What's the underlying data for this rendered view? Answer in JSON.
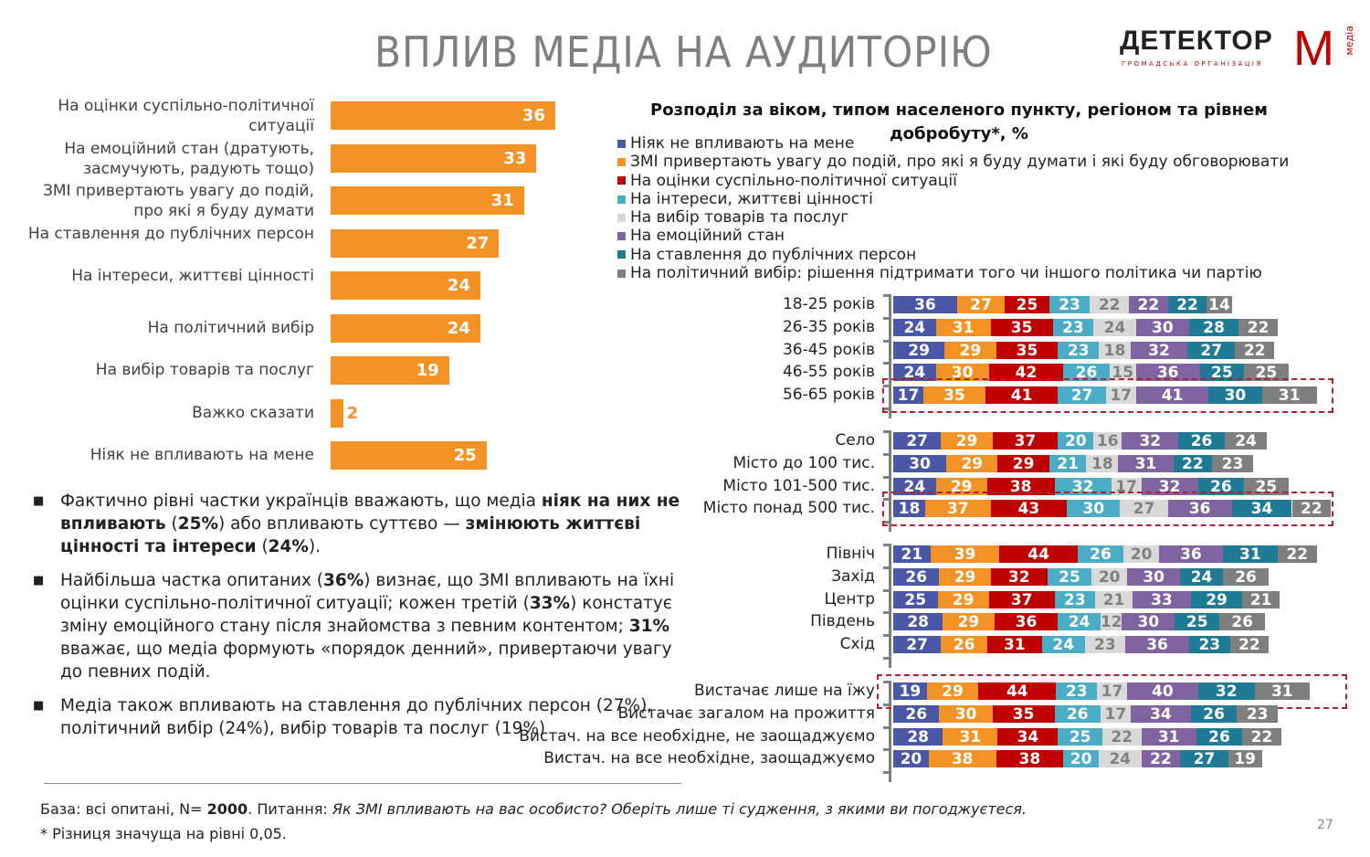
{
  "title": "ВПЛИВ МЕДІА НА АУДИТОРІЮ",
  "logo": {
    "word": "ДЕТЕКТОР",
    "m": "М",
    "sub": "ГРОМАДСЬКА ОРГАНІЗАЦІЯ",
    "media": "медіа"
  },
  "bullets": [
    [
      "Фактично рівні частки українців вважають, що медіа ",
      {
        "b": "ніяк на них не впливають"
      },
      " (",
      {
        "b": "25%"
      },
      ") або впливають суттєво — ",
      {
        "b": "змінюють життєві цінності та інтереси"
      },
      " (",
      {
        "b": "24%"
      },
      ")."
    ],
    [
      "Найбільша частка опитаних (",
      {
        "b": "36%"
      },
      ") визнає, що ЗМІ впливають на їхні оцінки суспільно-політичної ситуації; кожен третій (",
      {
        "b": "33%"
      },
      ") констатує зміну емоційного стану після знайомства з певним контентом; ",
      {
        "b": "31%"
      },
      " вважає, що медіа формують «порядок денний», привертаючи увагу до певних подій."
    ],
    [
      "Медіа також впливають на ставлення до публічних персон (27%), політичний вибір (24%), вибір товарів та послуг (19%)"
    ]
  ],
  "footnote": {
    "base_prefix": "База: всі опитані, N= ",
    "n": "2000",
    "q_prefix": ". Питання: ",
    "question": "Як ЗМІ впливають на вас особисто? Оберіть лише ті судження, з якими ви погоджуєтеся.",
    "note": "* Різниця значуща на рівні 0,05."
  },
  "page_number": "27",
  "chart_data": [
    {
      "type": "bar",
      "orientation": "horizontal",
      "categories": [
        "На оцінки суспільно-політичної ситуації",
        "На емоційний стан (дратують, засмучують, радують тощо)",
        "ЗМІ привертають увагу до подій, про які я буду думати",
        "На ставлення до публічних персон",
        "На інтереси, життєві цінності",
        "На політичний вибір",
        "На вибір товарів та послуг",
        "Важко сказати",
        "Ніяк не впливають на мене"
      ],
      "values": [
        36,
        33,
        31,
        27,
        24,
        24,
        19,
        2,
        25
      ],
      "color": "#f39325"
    },
    {
      "type": "bar",
      "orientation": "horizontal",
      "stacked": true,
      "title": "Розподіл за віком, типом населеного пункту, регіоном та рівнем добробуту*, %",
      "series": [
        {
          "name": "Ніяк не впливають на мене",
          "color": "#4a56a6"
        },
        {
          "name": "ЗМІ привертають увагу до подій, про які я буду думати і які буду обговорювати",
          "color": "#f39325"
        },
        {
          "name": "На оцінки суспільно-політичної ситуації",
          "color": "#c00000"
        },
        {
          "name": "На інтереси, життєві цінності",
          "color": "#4bacc6"
        },
        {
          "name": "На вибір товарів та послуг",
          "color": "#d9d9d9"
        },
        {
          "name": "На емоційний стан",
          "color": "#8064a2"
        },
        {
          "name": "На ставлення до публічних персон",
          "color": "#1f7a96"
        },
        {
          "name": "На політичний вибір: рішення підтримати того чи іншого політика чи партію",
          "color": "#7f7f7f"
        }
      ],
      "groups": [
        {
          "rows": [
            {
              "label": "18-25 років",
              "values": [
                36,
                27,
                25,
                23,
                22,
                22,
                22,
                14
              ]
            },
            {
              "label": "26-35 років",
              "values": [
                24,
                31,
                35,
                23,
                24,
                30,
                28,
                22
              ]
            },
            {
              "label": "36-45 років",
              "values": [
                29,
                29,
                35,
                23,
                18,
                32,
                27,
                22
              ]
            },
            {
              "label": "46-55 років",
              "values": [
                24,
                30,
                42,
                26,
                15,
                36,
                25,
                25
              ]
            },
            {
              "label": "56-65 років",
              "values": [
                17,
                35,
                41,
                27,
                17,
                41,
                30,
                31
              ],
              "highlight": true
            }
          ]
        },
        {
          "rows": [
            {
              "label": "Село",
              "values": [
                27,
                29,
                37,
                20,
                16,
                32,
                26,
                24
              ]
            },
            {
              "label": "Місто  до 100 тис.",
              "values": [
                30,
                29,
                29,
                21,
                18,
                31,
                22,
                23
              ]
            },
            {
              "label": "Місто 101-500 тис.",
              "values": [
                24,
                29,
                38,
                32,
                17,
                32,
                26,
                25
              ]
            },
            {
              "label": "Місто понад 500 тис.",
              "values": [
                18,
                37,
                43,
                30,
                27,
                36,
                34,
                22
              ],
              "highlight": true
            }
          ]
        },
        {
          "rows": [
            {
              "label": "Північ",
              "values": [
                21,
                39,
                44,
                26,
                20,
                36,
                31,
                22
              ]
            },
            {
              "label": "Захід",
              "values": [
                26,
                29,
                32,
                25,
                20,
                30,
                24,
                26
              ]
            },
            {
              "label": "Центр",
              "values": [
                25,
                29,
                37,
                23,
                21,
                33,
                29,
                21
              ]
            },
            {
              "label": "Південь",
              "values": [
                28,
                29,
                36,
                24,
                12,
                30,
                25,
                26
              ]
            },
            {
              "label": "Схід",
              "values": [
                27,
                26,
                31,
                24,
                23,
                36,
                23,
                22
              ]
            }
          ]
        },
        {
          "rows": [
            {
              "label": "Вистачає лише на їжу",
              "values": [
                19,
                29,
                44,
                23,
                17,
                40,
                32,
                31
              ],
              "highlight": true
            },
            {
              "label": "Вистачає загалом на прожиття",
              "values": [
                26,
                30,
                35,
                26,
                17,
                34,
                26,
                23
              ]
            },
            {
              "label": "Вистач. на все необхідне,  не заощаджуємо",
              "values": [
                28,
                31,
                34,
                25,
                22,
                31,
                26,
                22
              ]
            },
            {
              "label": "Вистач. на все необхідне, заощаджуємо",
              "values": [
                20,
                38,
                38,
                20,
                24,
                22,
                27,
                19
              ]
            }
          ]
        }
      ]
    }
  ]
}
